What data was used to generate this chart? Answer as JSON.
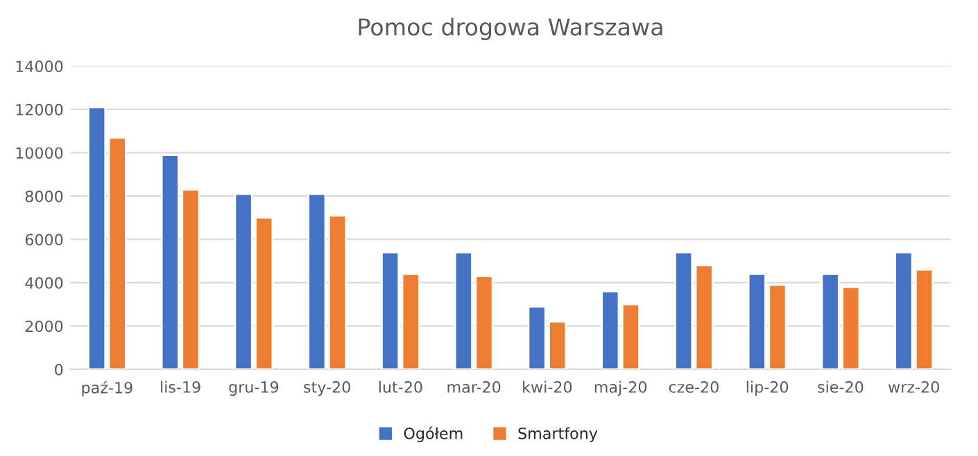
{
  "chart_data": {
    "type": "bar",
    "title": "Pomoc drogowa Warszawa",
    "categories": [
      "paź-19",
      "lis-19",
      "gru-19",
      "sty-20",
      "lut-20",
      "mar-20",
      "kwi-20",
      "maj-20",
      "cze-20",
      "lip-20",
      "sie-20",
      "wrz-20"
    ],
    "series": [
      {
        "name": "Ogółem",
        "color": "#4472c4",
        "values": [
          12100,
          9900,
          8100,
          8100,
          5400,
          5400,
          2900,
          3600,
          5400,
          4400,
          4400,
          5400
        ]
      },
      {
        "name": "Smartfony",
        "color": "#ed7d31",
        "values": [
          10700,
          8300,
          7000,
          7100,
          4400,
          4300,
          2200,
          3000,
          4800,
          3900,
          3800,
          4600
        ]
      }
    ],
    "ylim": [
      0,
      14000
    ],
    "yticks": [
      0,
      2000,
      4000,
      6000,
      8000,
      10000,
      12000,
      14000
    ],
    "grid": "y",
    "legend": "bottom"
  }
}
